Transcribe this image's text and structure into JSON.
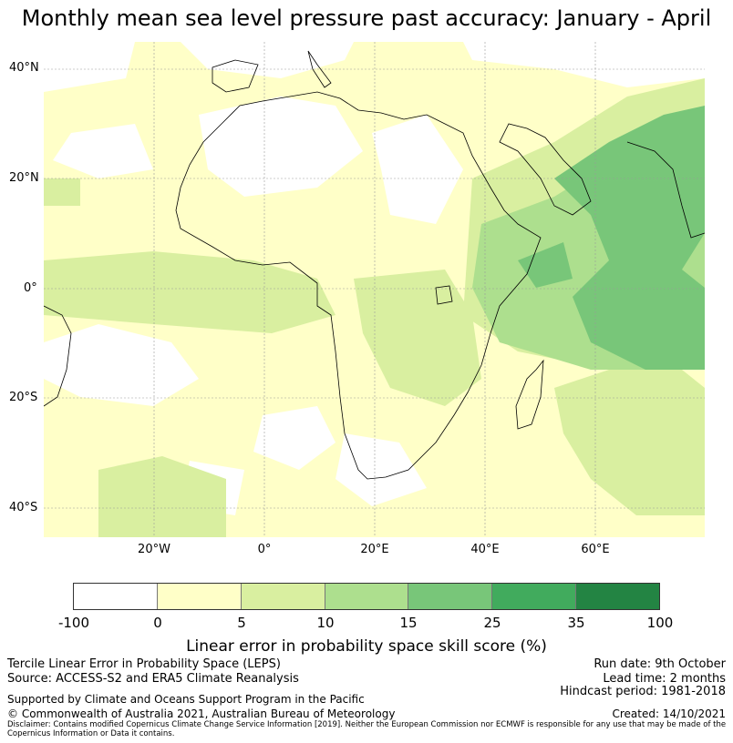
{
  "title": "Monthly mean sea level pressure past accuracy: January - April",
  "map": {
    "lat_labels": [
      "40°N",
      "20°N",
      "0°",
      "20°S",
      "40°S"
    ],
    "lon_labels": [
      "20°W",
      "0°",
      "20°E",
      "40°E",
      "60°E"
    ]
  },
  "legend": {
    "tick_labels": [
      "-100",
      "0",
      "5",
      "10",
      "15",
      "25",
      "35",
      "100"
    ],
    "colors": [
      "#ffffff",
      "#ffffc8",
      "#d9efa0",
      "#addf8e",
      "#78c679",
      "#41ab5d",
      "#238443"
    ],
    "label": "Linear error in probability space skill score (%)"
  },
  "info": {
    "method": "Tercile Linear Error in Probability Space (LEPS)",
    "source": "Source: ACCESS-S2 and ERA5 Climate Reanalysis",
    "support": "Supported by Climate and Oceans Support Program in the Pacific",
    "copyright": "© Commonwealth of Australia 2021, Australian Bureau of Meteorology",
    "run_date": "Run date: 9th October",
    "lead_time": "Lead time: 2 months",
    "hindcast": "Hindcast period: 1981-2018",
    "created": "Created: 14/10/2021",
    "disclaimer": "Disclaimer: Contains modified Copernicus Climate Change Service Information [2019]. Neither the European Commission nor ECMWF is responsible for any use that may be made of the Copernicus Information or Data it contains."
  }
}
